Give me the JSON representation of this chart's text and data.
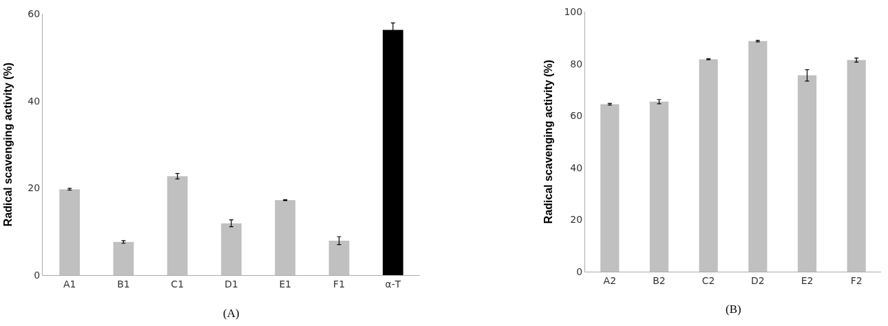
{
  "chart_data": [
    {
      "type": "bar",
      "title": "(A)",
      "ylabel": "Radical scavenging activity (%)",
      "categories": [
        "A1",
        "B1",
        "C1",
        "D1",
        "E1",
        "F1",
        "α-T"
      ],
      "values": [
        19.7,
        7.6,
        22.7,
        11.9,
        17.2,
        7.9,
        56.3
      ],
      "errors": [
        0.2,
        0.3,
        0.6,
        0.8,
        0.1,
        0.9,
        1.6
      ],
      "colors": [
        "#c0c0c0",
        "#c0c0c0",
        "#c0c0c0",
        "#c0c0c0",
        "#c0c0c0",
        "#c0c0c0",
        "#000000"
      ],
      "ylim": [
        0,
        60
      ],
      "yticks": [
        0,
        20,
        40,
        60
      ]
    },
    {
      "type": "bar",
      "title": "(B)",
      "ylabel": "Radical scavenging activity (%)",
      "categories": [
        "A2",
        "B2",
        "C2",
        "D2",
        "E2",
        "F2"
      ],
      "values": [
        64.4,
        65.4,
        81.7,
        88.7,
        75.5,
        81.4
      ],
      "errors": [
        0.3,
        0.8,
        0.2,
        0.3,
        2.2,
        0.8
      ],
      "colors": [
        "#c0c0c0",
        "#c0c0c0",
        "#c0c0c0",
        "#c0c0c0",
        "#c0c0c0",
        "#c0c0c0"
      ],
      "ylim": [
        0,
        100
      ],
      "yticks": [
        0,
        20,
        40,
        60,
        80,
        100
      ]
    }
  ]
}
